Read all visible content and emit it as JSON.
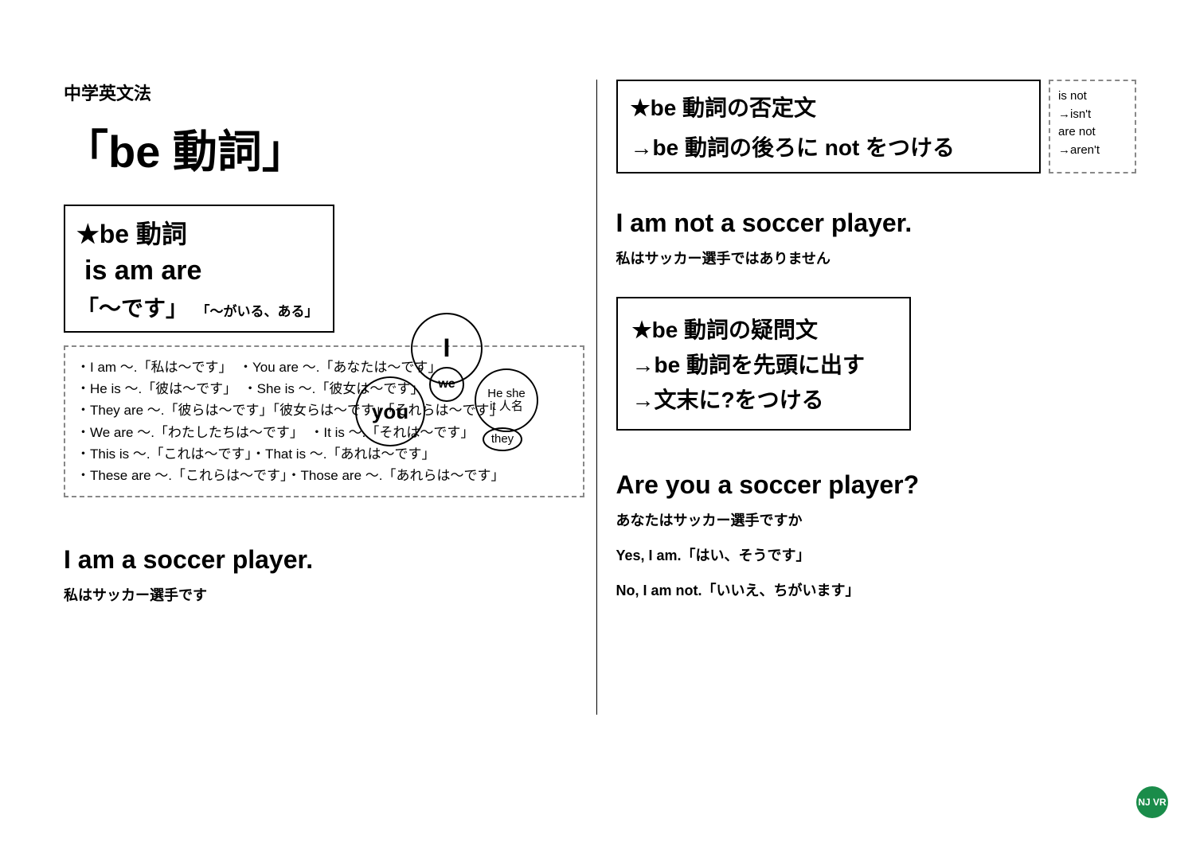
{
  "left": {
    "pretitle": "中学英文法",
    "title": "「be 動詞」",
    "be_box": {
      "h1": "★be 動詞",
      "h2": "is am are",
      "h3": "「～です」",
      "h4": "「～がいる、ある」"
    },
    "venn": {
      "i": "I",
      "we": "we",
      "you": "you",
      "hesheit_line1": "He she",
      "hesheit_line2": "it 人名",
      "they": "they"
    },
    "examples": [
      "・I am ～.「私は～です」　・You are ～.「あなたは～です」",
      "・He is ～.「彼は～です」　・She is ～.「彼女は～です」",
      "・They are ～.「彼らは～です」「彼女らは～です」「それらは～です」",
      "・We are ～.「わたしたちは～です」　・It is ～.「それは～です」",
      "・This is ～.「これは～です」・That is ～.「あれは～です」",
      "・These are ～.「これらは～です」・Those are ～.「あれらは～です」"
    ],
    "aff_en": "I am a soccer player.",
    "aff_jp": "私はサッカー選手です"
  },
  "right": {
    "neg_box": {
      "l1": "★be 動詞の否定文",
      "l2": "→be 動詞の後ろに not をつける"
    },
    "contractions": [
      "is not",
      "→isn't",
      "are not",
      "→aren't"
    ],
    "neg_en": "I am not a soccer player.",
    "neg_jp": "私はサッカー選手ではありません",
    "q_box": {
      "l1": "★be 動詞の疑問文",
      "l2": "→be 動詞を先頭に出す",
      "l3": "→文末に?をつける"
    },
    "q_en": "Are you a soccer player?",
    "q_jp": "あなたはサッカー選手ですか",
    "ans_yes": "Yes, I am.「はい、そうです」",
    "ans_no": "No, I am not.「いいえ、ちがいます」"
  },
  "badge": "NJ\nVR"
}
